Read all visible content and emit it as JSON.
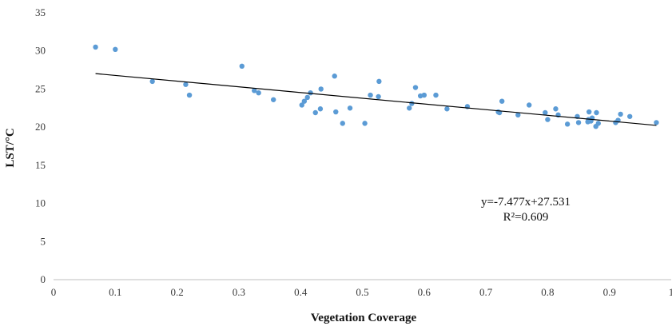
{
  "chart_data": {
    "type": "scatter",
    "title": "",
    "xlabel": "Vegetation Coverage",
    "ylabel": "LST/°C",
    "xlim": [
      0,
      1
    ],
    "ylim": [
      0,
      35
    ],
    "x_ticks": [
      "0",
      "0.1",
      "0.2",
      "0.3",
      "0.4",
      "0.5",
      "0.6",
      "0.7",
      "0.8",
      "0.9",
      "1"
    ],
    "y_ticks": [
      "0",
      "5",
      "10",
      "15",
      "20",
      "25",
      "30",
      "35"
    ],
    "grid": false,
    "legend": "none",
    "colors": {
      "points": "#5b9bd5",
      "trendline": "#000000",
      "axis": "#bfbfbf"
    },
    "trendline": {
      "slope": -7.477,
      "intercept": 27.531,
      "x_range": [
        0.068,
        0.976
      ],
      "equation": "y=-7.477x+27.531",
      "r2": "R²=0.609"
    },
    "points": [
      [
        0.068,
        30.5
      ],
      [
        0.1,
        30.2
      ],
      [
        0.16,
        26.0
      ],
      [
        0.214,
        25.6
      ],
      [
        0.22,
        24.2
      ],
      [
        0.305,
        28.0
      ],
      [
        0.325,
        24.8
      ],
      [
        0.332,
        24.5
      ],
      [
        0.356,
        23.6
      ],
      [
        0.402,
        22.9
      ],
      [
        0.406,
        23.4
      ],
      [
        0.411,
        23.9
      ],
      [
        0.416,
        24.5
      ],
      [
        0.424,
        21.9
      ],
      [
        0.432,
        22.4
      ],
      [
        0.433,
        25.0
      ],
      [
        0.455,
        26.7
      ],
      [
        0.457,
        22.0
      ],
      [
        0.468,
        20.5
      ],
      [
        0.48,
        22.5
      ],
      [
        0.504,
        20.5
      ],
      [
        0.513,
        24.2
      ],
      [
        0.526,
        24.0
      ],
      [
        0.527,
        26.0
      ],
      [
        0.576,
        22.5
      ],
      [
        0.58,
        23.1
      ],
      [
        0.586,
        25.2
      ],
      [
        0.594,
        24.1
      ],
      [
        0.6,
        24.2
      ],
      [
        0.619,
        24.2
      ],
      [
        0.637,
        22.4
      ],
      [
        0.67,
        22.7
      ],
      [
        0.72,
        22.0
      ],
      [
        0.722,
        21.9
      ],
      [
        0.726,
        23.4
      ],
      [
        0.752,
        21.6
      ],
      [
        0.77,
        22.9
      ],
      [
        0.796,
        21.9
      ],
      [
        0.8,
        21.0
      ],
      [
        0.813,
        22.4
      ],
      [
        0.817,
        21.6
      ],
      [
        0.832,
        20.4
      ],
      [
        0.848,
        21.4
      ],
      [
        0.85,
        20.6
      ],
      [
        0.865,
        20.7
      ],
      [
        0.866,
        21.0
      ],
      [
        0.867,
        22.0
      ],
      [
        0.87,
        20.8
      ],
      [
        0.872,
        21.2
      ],
      [
        0.878,
        20.1
      ],
      [
        0.879,
        21.9
      ],
      [
        0.882,
        20.5
      ],
      [
        0.91,
        20.6
      ],
      [
        0.914,
        20.9
      ],
      [
        0.918,
        21.7
      ],
      [
        0.933,
        21.4
      ],
      [
        0.976,
        20.6
      ]
    ]
  }
}
